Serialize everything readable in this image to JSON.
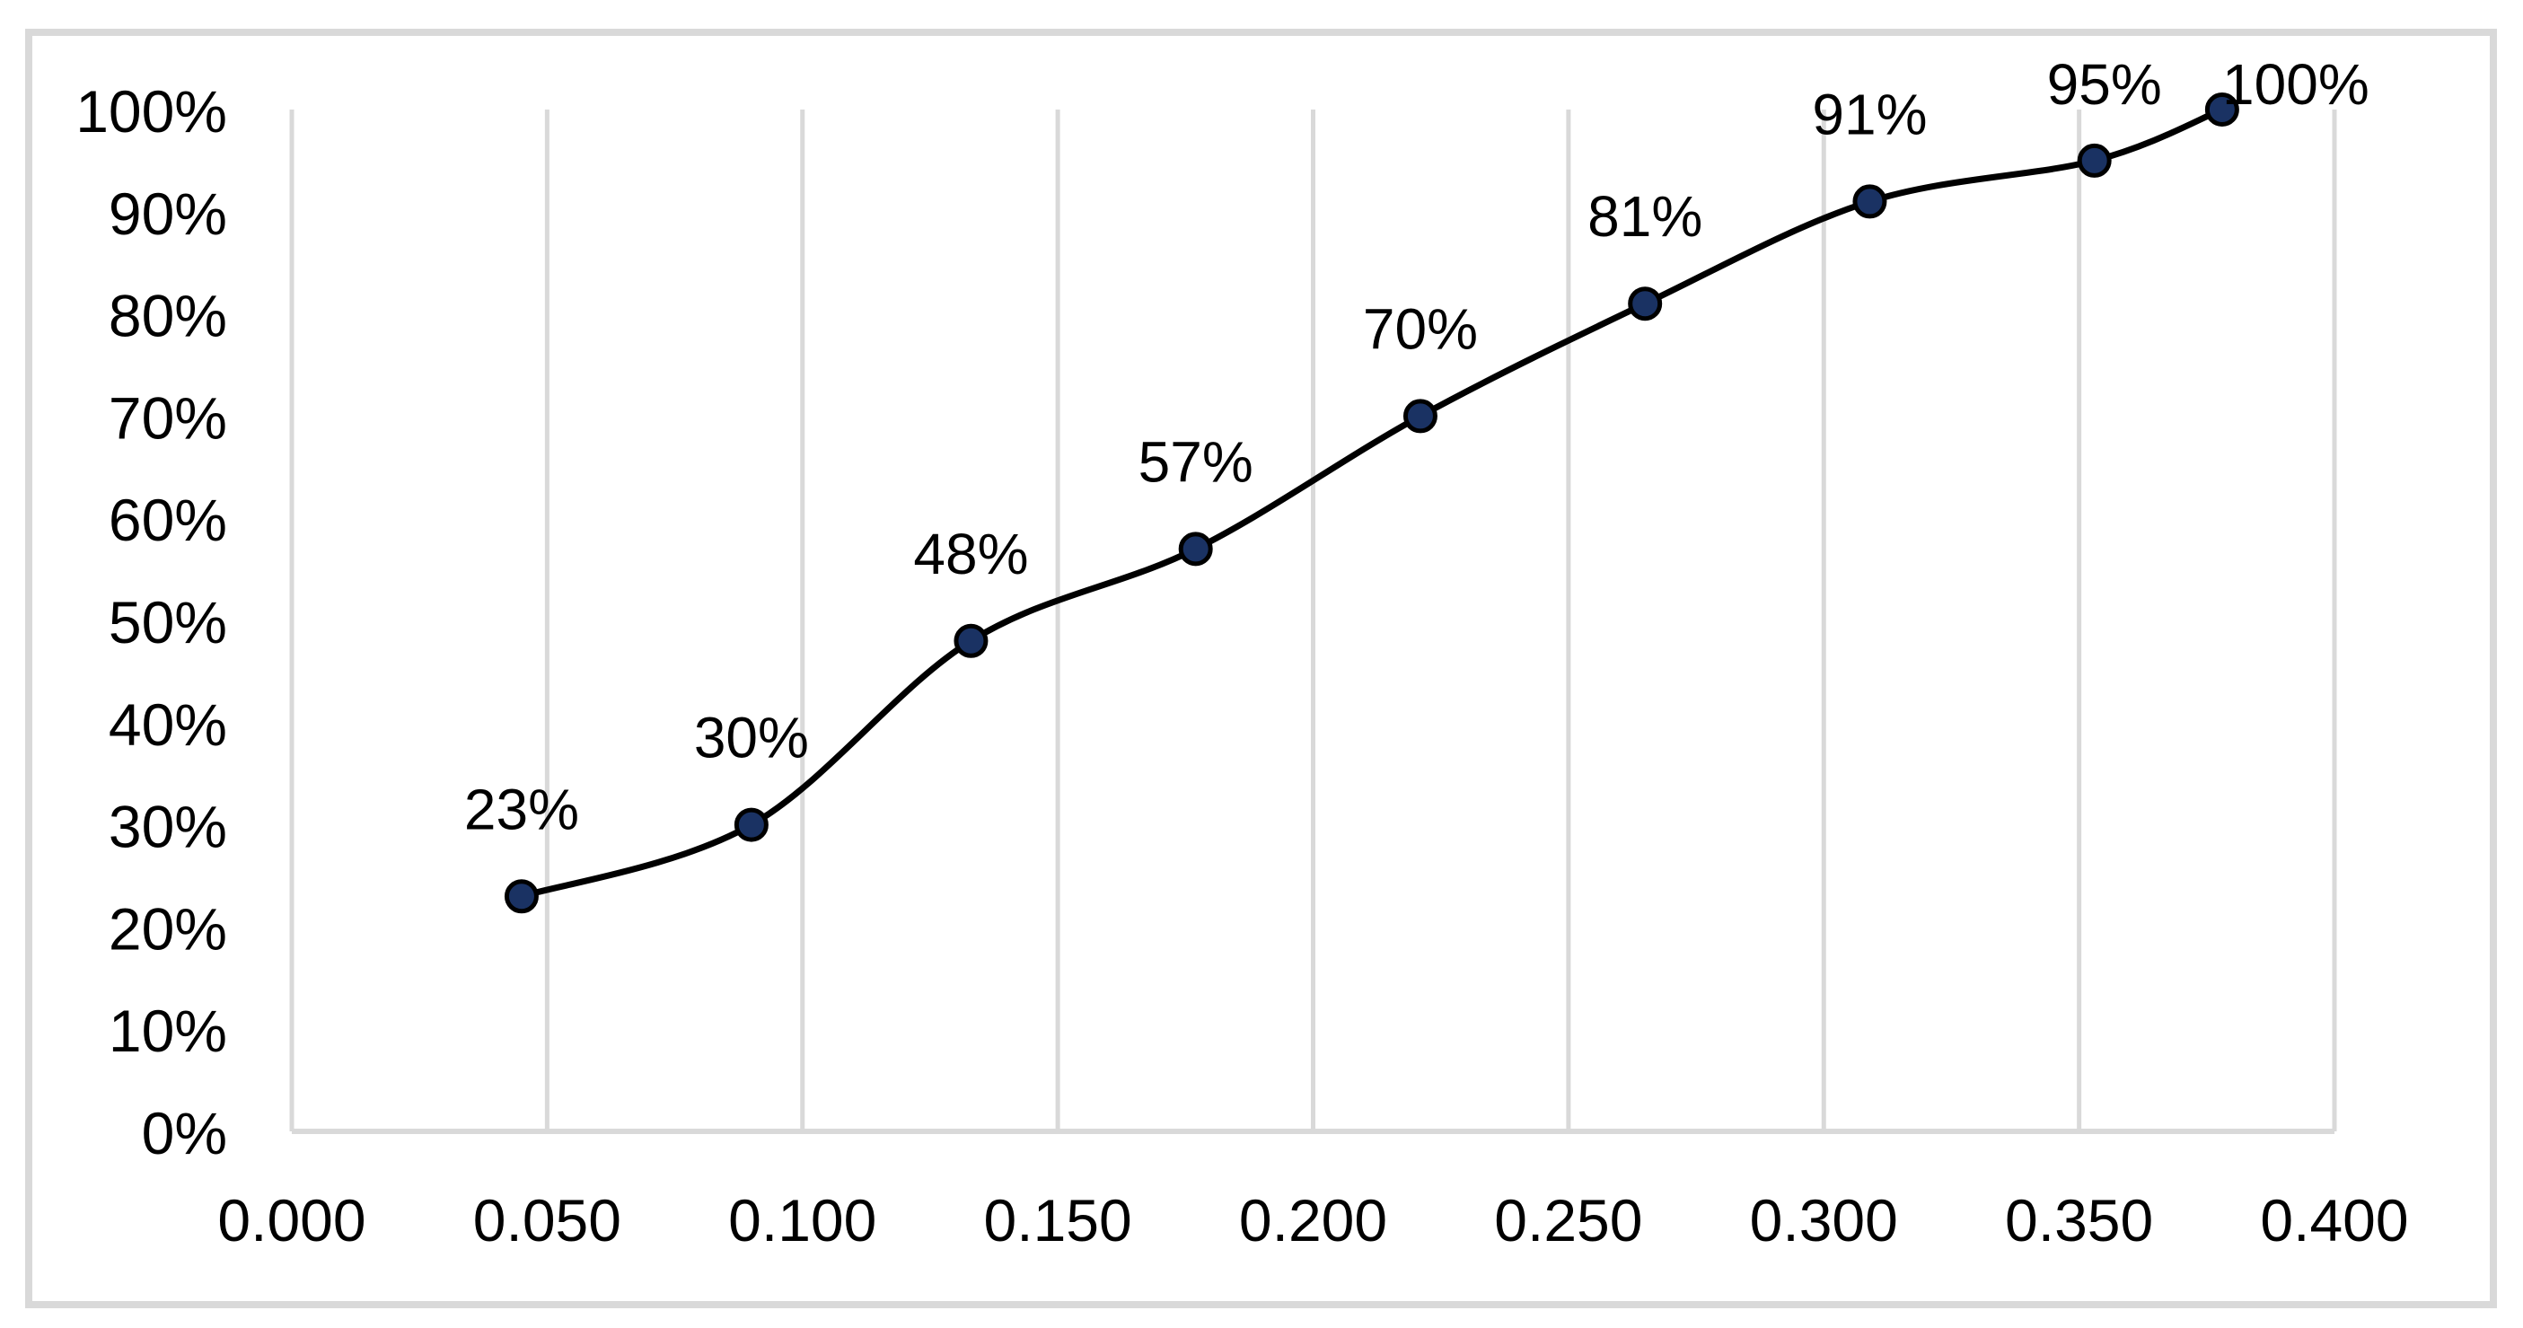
{
  "chart_data": {
    "type": "line",
    "title": "",
    "subtitle": "",
    "legend": "none",
    "grid": "vertical-only",
    "smoothed_line": true,
    "series": [
      {
        "name": "cumulative-percent-curve",
        "x": [
          0.045,
          0.09,
          0.133,
          0.177,
          0.221,
          0.265,
          0.309,
          0.353,
          0.378
        ],
        "y": [
          0.23,
          0.3,
          0.48,
          0.57,
          0.7,
          0.81,
          0.91,
          0.95,
          1.0
        ],
        "point_labels": [
          "23%",
          "30%",
          "48%",
          "57%",
          "70%",
          "81%",
          "91%",
          "95%",
          "100%"
        ]
      }
    ],
    "x_axis": {
      "min": 0.0,
      "max": 0.4,
      "step": 0.05,
      "tick_labels": [
        "0.000",
        "0.050",
        "0.100",
        "0.150",
        "0.200",
        "0.250",
        "0.300",
        "0.350",
        "0.400"
      ],
      "label": ""
    },
    "y_axis": {
      "min": 0.0,
      "max": 1.0,
      "step": 0.1,
      "tick_labels": [
        "0%",
        "10%",
        "20%",
        "30%",
        "40%",
        "50%",
        "60%",
        "70%",
        "80%",
        "90%",
        "100%"
      ],
      "label": ""
    },
    "colors": {
      "line": "#000000",
      "marker_fill": "#1A3263",
      "marker_stroke": "#000000",
      "gridline": "#D9D9D9",
      "axis_line": "#D9D9D9",
      "frame_border": "#D9D9D9",
      "text": "#000000",
      "background": "#FFFFFF"
    }
  }
}
